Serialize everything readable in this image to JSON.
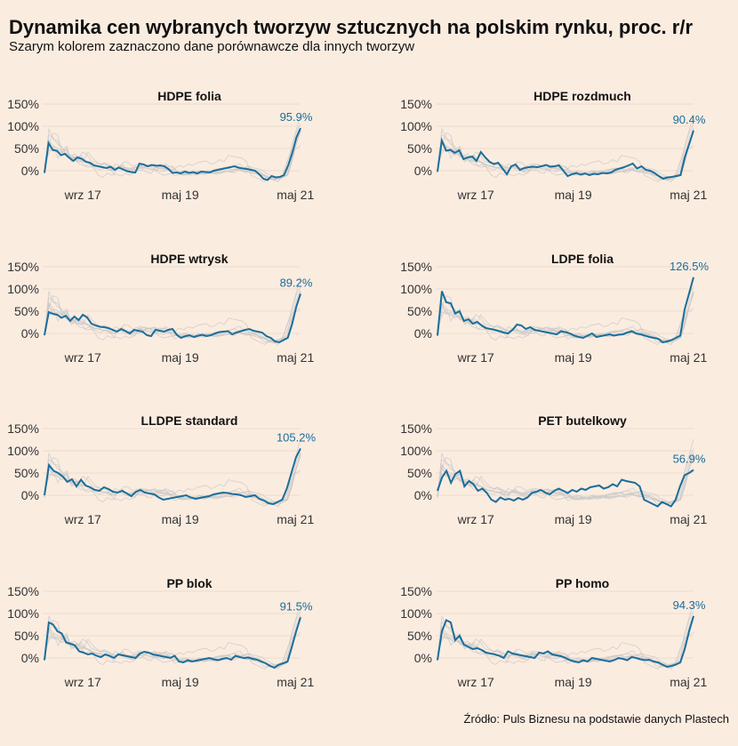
{
  "title": "Dynamika cen wybranych tworzyw sztucznych na polskim rynku, proc. r/r",
  "subtitle": "Szarym kolorem zaznaczono dane porównawcze dla innych tworzyw",
  "source": "Źródło: Puls Biznesu na podstawie danych Plastech",
  "colors": {
    "background": "#fbece0",
    "highlight": "#1a6e9a",
    "comparison": "#c8c8c8",
    "grid": "#ead9cc"
  },
  "chart_data": [
    {
      "type": "line",
      "title": "HDPE folia",
      "y_ticks": [
        "150%",
        "100%",
        "50%",
        "0%"
      ],
      "x_ticks": [
        "wrz 17",
        "maj 19",
        "maj 21"
      ],
      "ylim": [
        -30,
        150
      ],
      "end_label": "95.9%",
      "end_value": 95.9,
      "values": [
        -5,
        62,
        47,
        45,
        35,
        38,
        29,
        22,
        30,
        27,
        20,
        18,
        12,
        10,
        8,
        6,
        9,
        2,
        7,
        3,
        -1,
        -3,
        -4,
        16,
        14,
        10,
        13,
        11,
        12,
        10,
        4,
        -5,
        -4,
        -6,
        -2,
        -5,
        -3,
        -6,
        -2,
        -3,
        -4,
        0,
        2,
        4,
        6,
        8,
        10,
        7,
        5,
        4,
        2,
        0,
        -8,
        -18,
        -21,
        -12,
        -15,
        -14,
        -10,
        12,
        40,
        75,
        95.9
      ]
    },
    {
      "type": "line",
      "title": "HDPE rozdmuch",
      "y_ticks": [
        "150%",
        "100%",
        "50%",
        "0%"
      ],
      "x_ticks": [
        "wrz 17",
        "maj 19",
        "maj 21"
      ],
      "ylim": [
        -30,
        150
      ],
      "end_label": "90.4%",
      "end_value": 90.4,
      "values": [
        -2,
        68,
        45,
        47,
        40,
        46,
        26,
        30,
        32,
        22,
        42,
        30,
        20,
        15,
        18,
        5,
        -8,
        10,
        14,
        2,
        6,
        8,
        9,
        8,
        10,
        13,
        9,
        10,
        12,
        0,
        -12,
        -8,
        -5,
        -9,
        -6,
        -10,
        -7,
        -8,
        -5,
        -6,
        -4,
        2,
        5,
        8,
        12,
        16,
        5,
        10,
        2,
        0,
        -5,
        -12,
        -18,
        -15,
        -14,
        -12,
        -10,
        30,
        60,
        90.4
      ]
    },
    {
      "type": "line",
      "title": "HDPE wtrysk",
      "y_ticks": [
        "150%",
        "100%",
        "50%",
        "0%"
      ],
      "x_ticks": [
        "wrz 17",
        "maj 19",
        "maj 21"
      ],
      "ylim": [
        -30,
        150
      ],
      "end_label": "89.2%",
      "end_value": 89.2,
      "values": [
        -4,
        48,
        44,
        42,
        35,
        40,
        28,
        38,
        30,
        42,
        36,
        22,
        18,
        15,
        14,
        12,
        8,
        4,
        10,
        5,
        0,
        8,
        6,
        4,
        -4,
        -6,
        8,
        6,
        4,
        8,
        10,
        -3,
        -10,
        -6,
        -4,
        -8,
        -5,
        -3,
        -6,
        -4,
        0,
        3,
        4,
        5,
        -2,
        2,
        5,
        8,
        10,
        6,
        4,
        2,
        -6,
        -10,
        -18,
        -20,
        -15,
        -10,
        20,
        60,
        89.2
      ]
    },
    {
      "type": "line",
      "title": "LDPE folia",
      "y_ticks": [
        "150%",
        "100%",
        "50%",
        "0%"
      ],
      "x_ticks": [
        "wrz 17",
        "maj 19",
        "maj 21"
      ],
      "ylim": [
        -30,
        150
      ],
      "end_label": "126.5%",
      "end_value": 126.5,
      "values": [
        -5,
        95,
        70,
        68,
        45,
        50,
        28,
        32,
        22,
        26,
        18,
        12,
        10,
        8,
        5,
        2,
        0,
        8,
        20,
        18,
        10,
        14,
        8,
        6,
        4,
        2,
        0,
        -2,
        5,
        3,
        0,
        -5,
        -8,
        -10,
        -5,
        0,
        -8,
        -6,
        -4,
        -2,
        -5,
        -3,
        -2,
        2,
        5,
        0,
        -2,
        -5,
        -8,
        -10,
        -12,
        -20,
        -18,
        -15,
        -10,
        -5,
        55,
        90,
        126.5
      ]
    },
    {
      "type": "line",
      "title": "LLDPE standard",
      "y_ticks": [
        "150%",
        "100%",
        "50%",
        "0%"
      ],
      "x_ticks": [
        "wrz 17",
        "maj 19",
        "maj 21"
      ],
      "ylim": [
        -30,
        150
      ],
      "end_label": "105.2%",
      "end_value": 105.2,
      "values": [
        0,
        68,
        55,
        50,
        42,
        30,
        36,
        20,
        35,
        22,
        18,
        12,
        10,
        18,
        14,
        8,
        6,
        10,
        4,
        -2,
        8,
        12,
        6,
        4,
        2,
        -5,
        -10,
        -8,
        -6,
        -4,
        -2,
        0,
        -5,
        -8,
        -6,
        -4,
        -2,
        2,
        4,
        6,
        5,
        3,
        2,
        0,
        -4,
        -2,
        0,
        -8,
        -12,
        -18,
        -20,
        -15,
        -10,
        15,
        50,
        85,
        105.2
      ]
    },
    {
      "type": "line",
      "title": "PET butelkowy",
      "y_ticks": [
        "150%",
        "100%",
        "50%",
        "0%"
      ],
      "x_ticks": [
        "wrz 17",
        "maj 19",
        "maj 21"
      ],
      "ylim": [
        -30,
        150
      ],
      "end_label": "56.9%",
      "end_value": 56.9,
      "values": [
        10,
        40,
        55,
        28,
        48,
        55,
        20,
        32,
        25,
        10,
        15,
        5,
        -10,
        -15,
        -5,
        -10,
        -8,
        -12,
        -6,
        -10,
        -5,
        5,
        8,
        12,
        6,
        2,
        10,
        15,
        10,
        5,
        12,
        8,
        15,
        12,
        18,
        20,
        22,
        15,
        18,
        25,
        20,
        35,
        32,
        30,
        28,
        20,
        -10,
        -15,
        -20,
        -25,
        -15,
        -20,
        -25,
        -10,
        20,
        45,
        50,
        56.9
      ]
    },
    {
      "type": "line",
      "title": "PP blok",
      "y_ticks": [
        "150%",
        "100%",
        "50%",
        "0%"
      ],
      "x_ticks": [
        "wrz 17",
        "maj 19",
        "maj 21"
      ],
      "ylim": [
        -30,
        150
      ],
      "end_label": "91.5%",
      "end_value": 91.5,
      "values": [
        -5,
        80,
        75,
        60,
        55,
        35,
        32,
        28,
        15,
        12,
        8,
        10,
        5,
        2,
        8,
        5,
        0,
        8,
        6,
        4,
        2,
        0,
        10,
        14,
        12,
        8,
        6,
        4,
        2,
        0,
        5,
        -8,
        -10,
        -5,
        -8,
        -6,
        -4,
        -2,
        0,
        -3,
        -5,
        -2,
        0,
        -4,
        5,
        2,
        0,
        1,
        -2,
        -4,
        -8,
        -12,
        -18,
        -22,
        -15,
        -12,
        -8,
        25,
        60,
        91.5
      ]
    },
    {
      "type": "line",
      "title": "PP homo",
      "y_ticks": [
        "150%",
        "100%",
        "50%",
        "0%"
      ],
      "x_ticks": [
        "wrz 17",
        "maj 19",
        "maj 21"
      ],
      "ylim": [
        -30,
        150
      ],
      "end_label": "94.3%",
      "end_value": 94.3,
      "values": [
        -5,
        60,
        85,
        80,
        40,
        50,
        30,
        25,
        20,
        22,
        18,
        12,
        10,
        8,
        5,
        0,
        15,
        10,
        8,
        6,
        4,
        2,
        0,
        12,
        10,
        15,
        8,
        6,
        4,
        0,
        -5,
        -8,
        -10,
        -5,
        -8,
        0,
        -2,
        -4,
        -6,
        -8,
        -5,
        0,
        -2,
        -5,
        2,
        0,
        -3,
        -5,
        -4,
        -8,
        -10,
        -15,
        -20,
        -18,
        -15,
        -10,
        20,
        60,
        94.3
      ]
    }
  ]
}
